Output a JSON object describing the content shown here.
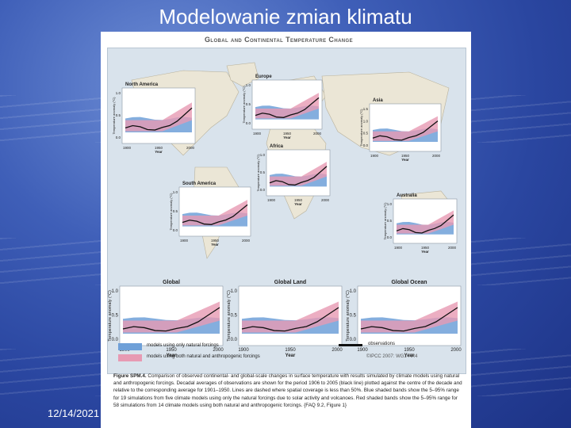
{
  "slide": {
    "title": "Modelowanie zmian klimatu",
    "date": "12/14/2021"
  },
  "figure": {
    "title": "Global and Continental Temperature Change",
    "regional_panels": [
      {
        "name": "North America",
        "x_ticks": [
          "1900",
          "1950",
          "2000"
        ],
        "y_ticks": [
          "1.0",
          "0.5",
          "0.0"
        ]
      },
      {
        "name": "Europe",
        "x_ticks": [
          "1900",
          "1950",
          "2000"
        ],
        "y_ticks": [
          "1.0",
          "0.5",
          "0.0"
        ]
      },
      {
        "name": "Asia",
        "x_ticks": [
          "1900",
          "1950",
          "2000"
        ],
        "y_ticks": [
          "1.5",
          "1.0",
          "0.5",
          "0.0"
        ]
      },
      {
        "name": "Africa",
        "x_ticks": [
          "1900",
          "1950",
          "2000"
        ],
        "y_ticks": [
          "1.0",
          "0.5",
          "0.0"
        ]
      },
      {
        "name": "South America",
        "x_ticks": [
          "1900",
          "1950",
          "2000"
        ],
        "y_ticks": [
          "1.0",
          "0.5",
          "0.0"
        ]
      },
      {
        "name": "Australia",
        "x_ticks": [
          "1900",
          "1950",
          "2000"
        ],
        "y_ticks": [
          "1.0",
          "0.5",
          "0.0"
        ]
      }
    ],
    "global_panels": [
      {
        "name": "Global",
        "x_ticks": [
          "1900",
          "1950",
          "2000"
        ],
        "y_ticks": [
          "1.0",
          "0.5",
          "0.0"
        ]
      },
      {
        "name": "Global Land",
        "x_ticks": [
          "1900",
          "1950",
          "2000"
        ],
        "y_ticks": [
          "1.0",
          "0.5",
          "0.0"
        ]
      },
      {
        "name": "Global Ocean",
        "x_ticks": [
          "1900",
          "1950",
          "2000"
        ],
        "y_ticks": [
          "1.0",
          "0.5",
          "0.0"
        ]
      }
    ],
    "y_axis_label": "Temperature anomaly (°C)",
    "x_axis_label": "Year",
    "legend": {
      "natural": "models using only natural forcings",
      "both": "models using both natural and anthropogenic forcings",
      "observations": "observations"
    },
    "credit": "©IPCC 2007: WG1-AR4",
    "caption_bold": "Figure SPM.4.",
    "caption_text": "Comparison of observed continental- and global-scale changes in surface temperature with results simulated by climate models using natural and anthropogenic forcings. Decadal averages of observations are shown for the period 1906 to 2005 (black line) plotted against the centre of the decade and relative to the corresponding average for 1901–1950. Lines are dashed where spatial coverage is less than 50%. Blue shaded bands show the 5–95% range for 19 simulations from five climate models using only the natural forcings due to solar activity and volcanoes. Red shaded bands show the 5–95% range for 58 simulations from 14 climate models using both natural and anthropogenic forcings. {FAQ 9.2, Figure 1}",
    "colors": {
      "blue_band": "#6fa0d8",
      "red_band": "#e79ab3",
      "observation": "#111111",
      "land": "#ebe6d6",
      "ocean": "#d9e3ec"
    }
  }
}
